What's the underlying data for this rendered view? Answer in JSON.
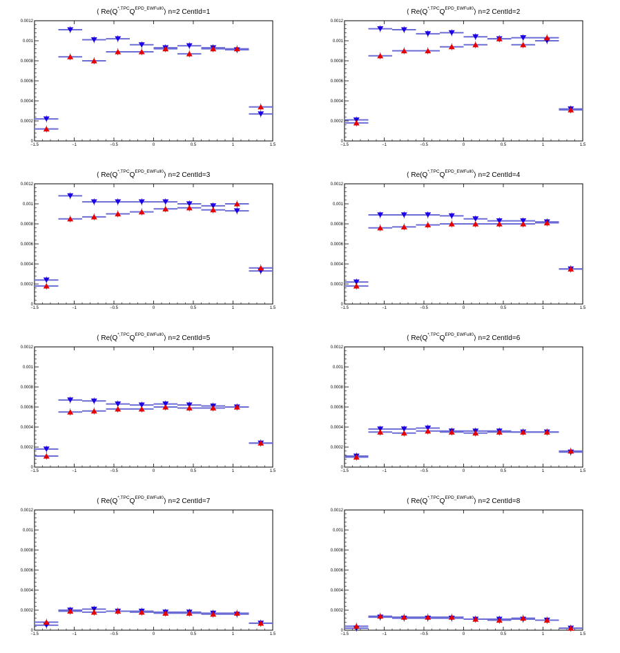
{
  "colors": {
    "down_series": "#1e00e6",
    "up_series": "#e60000",
    "bar": "#6b6bd6",
    "axis": "#000000"
  },
  "chart_data": [
    {
      "type": "scatter",
      "title": {
        "open": "⟨ Re(Q",
        "sup_a": "*,TPC",
        "mid": "Q",
        "sup_b": "EPD_EWFull0",
        "close": "⟩ n=2  CentId=1"
      },
      "xlim": [
        -1.5,
        1.5
      ],
      "ylim": [
        0,
        0.0012
      ],
      "x_ticks": [
        -1.5,
        -1,
        -0.5,
        0,
        0.5,
        1,
        1.5
      ],
      "x_tick_labels": [
        "−1.5",
        "−1",
        "−0.5",
        "0",
        "0.5",
        "1",
        "1.5"
      ],
      "y_ticks": [
        0,
        0.0002,
        0.0004,
        0.0006,
        0.0008,
        0.001,
        0.0012
      ],
      "y_tick_labels": [
        "0",
        "0.0002",
        "0.0004",
        "0.0006",
        "0.0008",
        "0.001",
        "0.0012"
      ],
      "x": [
        -1.35,
        -1.05,
        -0.75,
        -0.45,
        -0.15,
        0.15,
        0.45,
        0.75,
        1.05,
        1.35
      ],
      "x_half_width": 0.15,
      "series": [
        {
          "marker": "triangle-down",
          "values": [
            0.00022,
            0.00111,
            0.00101,
            0.00102,
            0.00096,
            0.00093,
            0.00095,
            0.00093,
            0.00091,
            0.00027
          ]
        },
        {
          "marker": "triangle-up",
          "values": [
            0.00012,
            0.00084,
            0.0008,
            0.00089,
            0.00089,
            0.00092,
            0.00087,
            0.00092,
            0.00092,
            0.00034
          ]
        }
      ]
    },
    {
      "type": "scatter",
      "title": {
        "open": "⟨ Re(Q",
        "sup_a": "*,TPC",
        "mid": "Q",
        "sup_b": "EPD_EWFull0",
        "close": "⟩ n=2  CentId=2"
      },
      "xlim": [
        -1.5,
        1.5
      ],
      "ylim": [
        0,
        0.0012
      ],
      "x_ticks": [
        -1.5,
        -1,
        -0.5,
        0,
        0.5,
        1,
        1.5
      ],
      "x_tick_labels": [
        "−1.5",
        "−1",
        "−0.5",
        "0",
        "0.5",
        "1",
        "1.5"
      ],
      "y_ticks": [
        0,
        0.0002,
        0.0004,
        0.0006,
        0.0008,
        0.001,
        0.0012
      ],
      "y_tick_labels": [
        "0",
        "0.0002",
        "0.0004",
        "0.0006",
        "0.0008",
        "0.001",
        "0.0012"
      ],
      "x": [
        -1.35,
        -1.05,
        -0.75,
        -0.45,
        -0.15,
        0.15,
        0.45,
        0.75,
        1.05,
        1.35
      ],
      "x_half_width": 0.15,
      "series": [
        {
          "marker": "triangle-down",
          "values": [
            0.00021,
            0.00112,
            0.00111,
            0.00107,
            0.00108,
            0.00104,
            0.00102,
            0.00103,
            0.001,
            0.00032
          ]
        },
        {
          "marker": "triangle-up",
          "values": [
            0.00018,
            0.00085,
            0.0009,
            0.0009,
            0.00094,
            0.00096,
            0.00102,
            0.00096,
            0.00103,
            0.00031
          ]
        }
      ]
    },
    {
      "type": "scatter",
      "title": {
        "open": "⟨ Re(Q",
        "sup_a": "*,TPC",
        "mid": "Q",
        "sup_b": "EPD_EWFull0",
        "close": "⟩ n=2  CentId=3"
      },
      "xlim": [
        -1.5,
        1.5
      ],
      "ylim": [
        0,
        0.0012
      ],
      "x_ticks": [
        -1.5,
        -1,
        -0.5,
        0,
        0.5,
        1,
        1.5
      ],
      "x_tick_labels": [
        "−1.5",
        "−1",
        "−0.5",
        "0",
        "0.5",
        "1",
        "1.5"
      ],
      "y_ticks": [
        0,
        0.0002,
        0.0004,
        0.0006,
        0.0008,
        0.001,
        0.0012
      ],
      "y_tick_labels": [
        "0",
        "0.0002",
        "0.0004",
        "0.0006",
        "0.0008",
        "0.001",
        "0.0012"
      ],
      "x": [
        -1.35,
        -1.05,
        -0.75,
        -0.45,
        -0.15,
        0.15,
        0.45,
        0.75,
        1.05,
        1.35
      ],
      "x_half_width": 0.15,
      "series": [
        {
          "marker": "triangle-down",
          "values": [
            0.00024,
            0.00108,
            0.00102,
            0.00102,
            0.00102,
            0.00102,
            0.001,
            0.00098,
            0.00093,
            0.00033
          ]
        },
        {
          "marker": "triangle-up",
          "values": [
            0.00018,
            0.00085,
            0.00087,
            0.0009,
            0.00092,
            0.00095,
            0.00096,
            0.00094,
            0.001,
            0.00036
          ]
        }
      ]
    },
    {
      "type": "scatter",
      "title": {
        "open": "⟨ Re(Q",
        "sup_a": "*,TPC",
        "mid": "Q",
        "sup_b": "EPD_EWFull0",
        "close": "⟩ n=2  CentId=4"
      },
      "xlim": [
        -1.5,
        1.5
      ],
      "ylim": [
        0,
        0.0012
      ],
      "x_ticks": [
        -1.5,
        -1,
        -0.5,
        0,
        0.5,
        1,
        1.5
      ],
      "x_tick_labels": [
        "−1.5",
        "−1",
        "−0.5",
        "0",
        "0.5",
        "1",
        "1.5"
      ],
      "y_ticks": [
        0,
        0.0002,
        0.0004,
        0.0006,
        0.0008,
        0.001,
        0.0012
      ],
      "y_tick_labels": [
        "0",
        "0.0002",
        "0.0004",
        "0.0006",
        "0.0008",
        "0.001",
        "0.0012"
      ],
      "x": [
        -1.35,
        -1.05,
        -0.75,
        -0.45,
        -0.15,
        0.15,
        0.45,
        0.75,
        1.05,
        1.35
      ],
      "x_half_width": 0.15,
      "series": [
        {
          "marker": "triangle-down",
          "values": [
            0.00022,
            0.00089,
            0.00089,
            0.00089,
            0.00088,
            0.00085,
            0.00083,
            0.00083,
            0.00082,
            0.00035
          ]
        },
        {
          "marker": "triangle-up",
          "values": [
            0.00018,
            0.00076,
            0.00077,
            0.00079,
            0.0008,
            0.0008,
            0.0008,
            0.0008,
            0.00081,
            0.00035
          ]
        }
      ]
    },
    {
      "type": "scatter",
      "title": {
        "open": "⟨ Re(Q",
        "sup_a": "*,TPC",
        "mid": "Q",
        "sup_b": "EPD_EWFull0",
        "close": "⟩ n=2  CentId=5"
      },
      "xlim": [
        -1.5,
        1.5
      ],
      "ylim": [
        0,
        0.0012
      ],
      "x_ticks": [
        -1.5,
        -1,
        -0.5,
        0,
        0.5,
        1,
        1.5
      ],
      "x_tick_labels": [
        "−1.5",
        "−1",
        "−0.5",
        "0",
        "0.5",
        "1",
        "1.5"
      ],
      "y_ticks": [
        0,
        0.0002,
        0.0004,
        0.0006,
        0.0008,
        0.001,
        0.0012
      ],
      "y_tick_labels": [
        "0",
        "0.0002",
        "0.0004",
        "0.0006",
        "0.0008",
        "0.001",
        "0.0012"
      ],
      "x": [
        -1.35,
        -1.05,
        -0.75,
        -0.45,
        -0.15,
        0.15,
        0.45,
        0.75,
        1.05,
        1.35
      ],
      "x_half_width": 0.15,
      "series": [
        {
          "marker": "triangle-down",
          "values": [
            0.00018,
            0.00067,
            0.00066,
            0.00063,
            0.00062,
            0.00063,
            0.00062,
            0.00061,
            0.0006,
            0.00024
          ]
        },
        {
          "marker": "triangle-up",
          "values": [
            0.00011,
            0.00055,
            0.00056,
            0.00058,
            0.00058,
            0.0006,
            0.00059,
            0.00059,
            0.0006,
            0.00024
          ]
        }
      ]
    },
    {
      "type": "scatter",
      "title": {
        "open": "⟨ Re(Q",
        "sup_a": "*,TPC",
        "mid": "Q",
        "sup_b": "EPD_EWFull0",
        "close": "⟩ n=2  CentId=6"
      },
      "xlim": [
        -1.5,
        1.5
      ],
      "ylim": [
        0,
        0.0012
      ],
      "x_ticks": [
        -1.5,
        -1,
        -0.5,
        0,
        0.5,
        1,
        1.5
      ],
      "x_tick_labels": [
        "−1.5",
        "−1",
        "−0.5",
        "0",
        "0.5",
        "1",
        "1.5"
      ],
      "y_ticks": [
        0,
        0.0002,
        0.0004,
        0.0006,
        0.0008,
        0.001,
        0.0012
      ],
      "y_tick_labels": [
        "0",
        "0.0002",
        "0.0004",
        "0.0006",
        "0.0008",
        "0.001",
        "0.0012"
      ],
      "x": [
        -1.35,
        -1.05,
        -0.75,
        -0.45,
        -0.15,
        0.15,
        0.45,
        0.75,
        1.05,
        1.35
      ],
      "x_half_width": 0.15,
      "series": [
        {
          "marker": "triangle-down",
          "values": [
            0.00011,
            0.00038,
            0.00038,
            0.00039,
            0.00036,
            0.00036,
            0.00036,
            0.00035,
            0.00035,
            0.00015
          ]
        },
        {
          "marker": "triangle-up",
          "values": [
            0.0001,
            0.00035,
            0.00034,
            0.00036,
            0.00035,
            0.00034,
            0.00035,
            0.00035,
            0.00035,
            0.00016
          ]
        }
      ]
    },
    {
      "type": "scatter",
      "title": {
        "open": "⟨ Re(Q",
        "sup_a": "*,TPC",
        "mid": "Q",
        "sup_b": "EPD_EWFull0",
        "close": "⟩ n=2  CentId=7"
      },
      "xlim": [
        -1.5,
        1.5
      ],
      "ylim": [
        0,
        0.0012
      ],
      "x_ticks": [
        -1.5,
        -1,
        -0.5,
        0,
        0.5,
        1,
        1.5
      ],
      "x_tick_labels": [
        "−1.5",
        "−1",
        "−0.5",
        "0",
        "0.5",
        "1",
        "1.5"
      ],
      "y_ticks": [
        0,
        0.0002,
        0.0004,
        0.0006,
        0.0008,
        0.001,
        0.0012
      ],
      "y_tick_labels": [
        "0",
        "0.0002",
        "0.0004",
        "0.0006",
        "0.0008",
        "0.001",
        "0.0012"
      ],
      "x": [
        -1.35,
        -1.05,
        -0.75,
        -0.45,
        -0.15,
        0.15,
        0.45,
        0.75,
        1.05,
        1.35
      ],
      "x_half_width": 0.15,
      "series": [
        {
          "marker": "triangle-down",
          "values": [
            5e-05,
            0.0002,
            0.00021,
            0.00019,
            0.00019,
            0.00018,
            0.00018,
            0.00017,
            0.00016,
            7e-05
          ]
        },
        {
          "marker": "triangle-up",
          "values": [
            8e-05,
            0.00019,
            0.00018,
            0.00019,
            0.00018,
            0.00017,
            0.00017,
            0.00016,
            0.00017,
            7e-05
          ]
        }
      ]
    },
    {
      "type": "scatter",
      "title": {
        "open": "⟨ Re(Q",
        "sup_a": "*,TPC",
        "mid": "Q",
        "sup_b": "EPD_EWFull0",
        "close": "⟩ n=2  CentId=8"
      },
      "xlim": [
        -1.5,
        1.5
      ],
      "ylim": [
        0,
        0.0012
      ],
      "x_ticks": [
        -1.5,
        -1,
        -0.5,
        0,
        0.5,
        1,
        1.5
      ],
      "x_tick_labels": [
        "−1.5",
        "−1",
        "−0.5",
        "0",
        "0.5",
        "1",
        "1.5"
      ],
      "y_ticks": [
        0,
        0.0002,
        0.0004,
        0.0006,
        0.0008,
        0.001,
        0.0012
      ],
      "y_tick_labels": [
        "0",
        "0.0002",
        "0.0004",
        "0.0006",
        "0.0008",
        "0.001",
        "0.0012"
      ],
      "x": [
        -1.35,
        -1.05,
        -0.75,
        -0.45,
        -0.15,
        0.15,
        0.45,
        0.75,
        1.05,
        1.35
      ],
      "x_half_width": 0.15,
      "series": [
        {
          "marker": "triangle-down",
          "values": [
            2e-05,
            0.00013,
            0.00012,
            0.00012,
            0.00012,
            0.00011,
            0.00011,
            0.00011,
            0.0001,
            2e-05
          ]
        },
        {
          "marker": "triangle-up",
          "values": [
            4e-05,
            0.00014,
            0.00013,
            0.00013,
            0.00013,
            0.00011,
            0.0001,
            0.00012,
            0.0001,
            2e-05
          ]
        }
      ]
    }
  ]
}
